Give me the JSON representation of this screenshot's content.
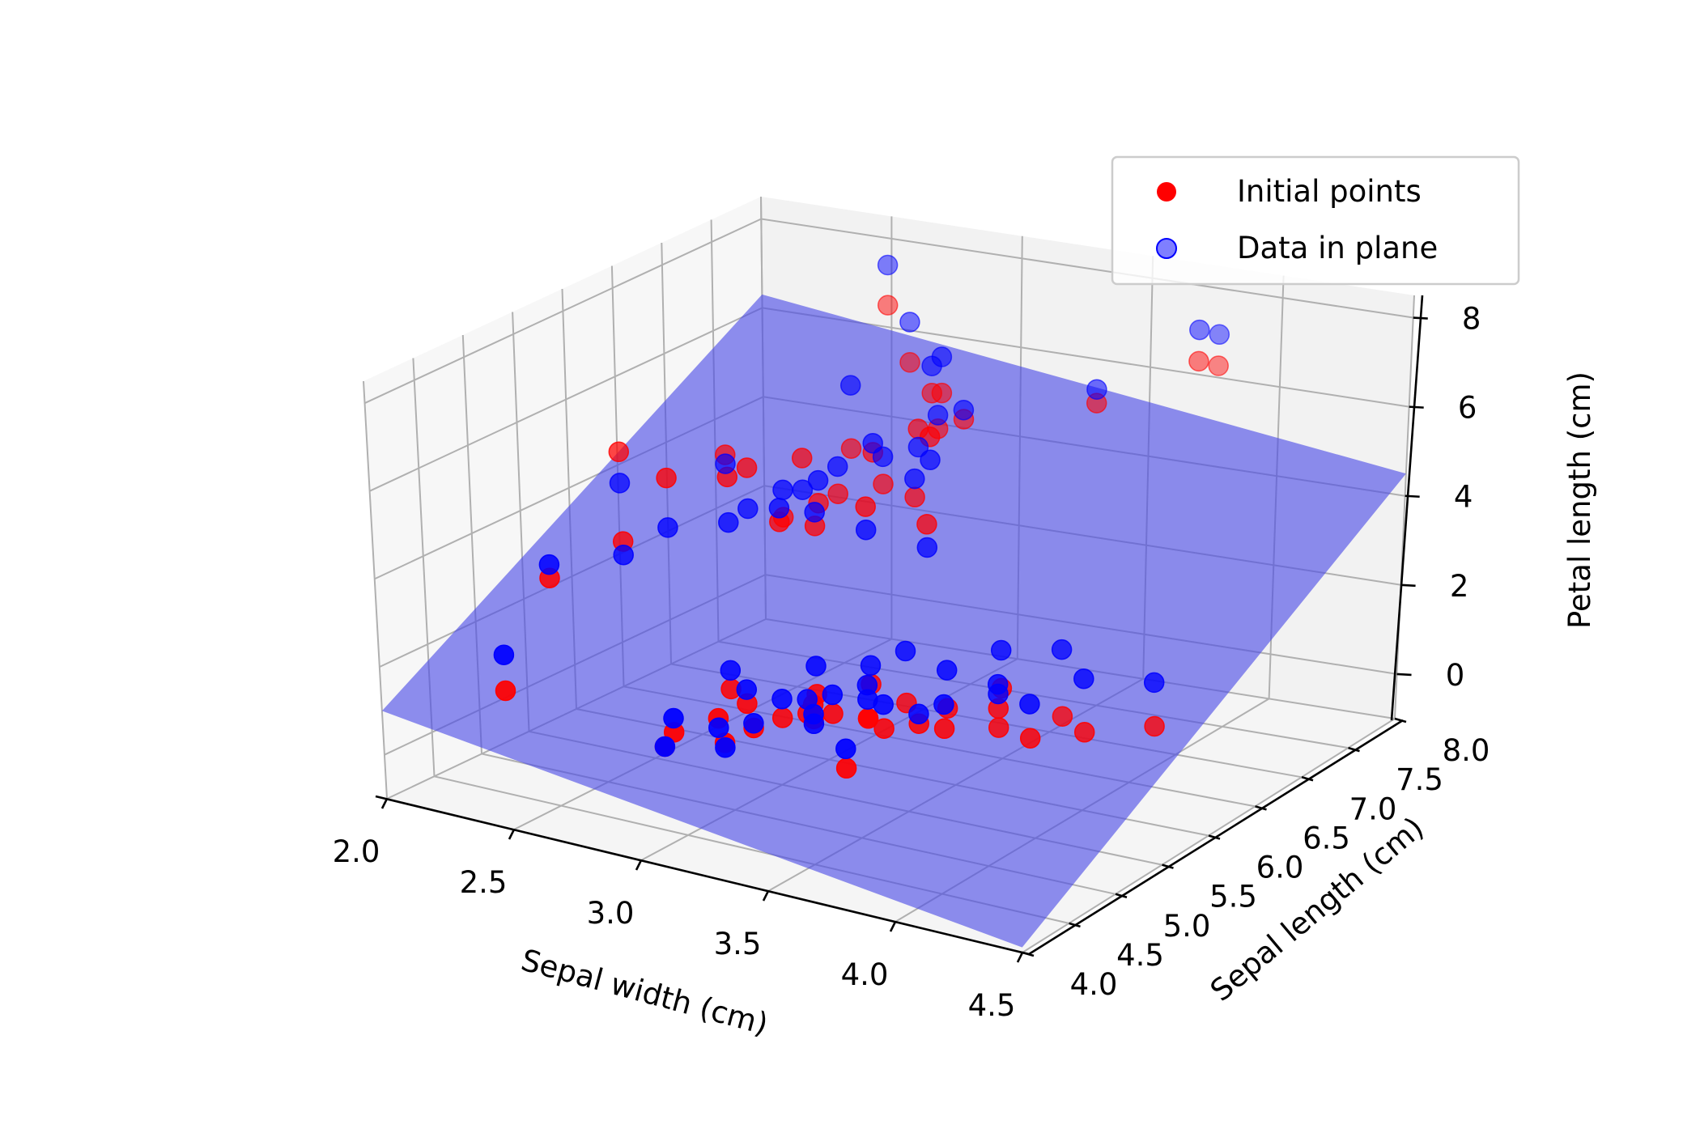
{
  "chart_data": {
    "type": "scatter",
    "projection": "3d",
    "grid": true,
    "legend_position": "top-right",
    "xlabel": "Sepal width (cm)",
    "ylabel": "Sepal length (cm)",
    "zlabel": "Petal length (cm)",
    "x_ticks": [
      "2.0",
      "2.5",
      "3.0",
      "3.5",
      "4.0",
      "4.5"
    ],
    "y_ticks": [
      "4.0",
      "4.5",
      "5.0",
      "5.5",
      "6.0",
      "6.5",
      "7.0",
      "7.5",
      "8.0"
    ],
    "z_ticks": [
      "0",
      "2",
      "4",
      "6",
      "8"
    ],
    "xlim": [
      2.0,
      4.5
    ],
    "ylim": [
      4.0,
      8.0
    ],
    "zlim": [
      -1.0,
      8.5
    ],
    "plane": {
      "color": "#4a4ae6",
      "z_center": 3.75,
      "description_points": [
        [
          2.0,
          4.0,
          1.0
        ],
        [
          4.5,
          4.0,
          -0.9
        ],
        [
          4.5,
          8.0,
          4.5
        ],
        [
          2.0,
          8.0,
          6.3
        ]
      ]
    },
    "series": [
      {
        "name": "Initial points",
        "color": "#ff0000",
        "points": [
          [
            2.3,
            5.0,
            3.3
          ],
          [
            2.9,
            5.8,
            4.3
          ],
          [
            2.7,
            6.0,
            5.1
          ],
          [
            3.0,
            6.5,
            5.2
          ],
          [
            2.8,
            6.3,
            5.1
          ],
          [
            3.2,
            6.9,
            5.7
          ],
          [
            2.5,
            5.7,
            5.0
          ],
          [
            3.0,
            7.2,
            5.8
          ],
          [
            3.1,
            6.7,
            5.6
          ],
          [
            2.9,
            6.2,
            4.3
          ],
          [
            3.0,
            5.9,
            4.2
          ],
          [
            2.8,
            6.8,
            4.8
          ],
          [
            3.3,
            6.3,
            6.0
          ],
          [
            3.0,
            7.1,
            5.9
          ],
          [
            3.6,
            7.2,
            6.1
          ],
          [
            3.8,
            7.7,
            6.7
          ],
          [
            2.6,
            7.7,
            6.9
          ],
          [
            3.8,
            7.9,
            6.4
          ],
          [
            2.8,
            7.4,
            6.1
          ],
          [
            3.1,
            6.9,
            5.4
          ],
          [
            2.2,
            6.0,
            5.0
          ],
          [
            3.2,
            6.4,
            4.5
          ],
          [
            3.4,
            6.0,
            4.5
          ],
          [
            2.7,
            5.8,
            5.1
          ],
          [
            2.4,
            5.5,
            3.7
          ],
          [
            2.5,
            6.3,
            4.9
          ],
          [
            2.9,
            6.4,
            4.3
          ],
          [
            3.0,
            6.6,
            4.4
          ],
          [
            2.8,
            6.1,
            4.0
          ],
          [
            3.2,
            5.9,
            4.8
          ],
          [
            3.4,
            5.0,
            1.5
          ],
          [
            3.0,
            4.4,
            1.3
          ],
          [
            3.5,
            5.1,
            1.4
          ],
          [
            3.1,
            4.9,
            1.5
          ],
          [
            3.7,
            5.4,
            1.5
          ],
          [
            3.4,
            4.8,
            1.6
          ],
          [
            4.0,
            5.8,
            1.2
          ],
          [
            4.4,
            5.7,
            1.5
          ],
          [
            3.9,
            5.4,
            1.3
          ],
          [
            3.5,
            5.1,
            1.4
          ],
          [
            3.8,
            5.7,
            1.7
          ],
          [
            3.8,
            5.1,
            1.5
          ],
          [
            3.4,
            5.4,
            1.7
          ],
          [
            3.7,
            5.1,
            1.5
          ],
          [
            3.6,
            4.6,
            1.0
          ],
          [
            3.3,
            5.1,
            1.7
          ],
          [
            3.4,
            4.8,
            1.9
          ],
          [
            3.0,
            5.0,
            1.6
          ],
          [
            3.2,
            4.4,
            1.3
          ],
          [
            2.3,
            4.5,
            1.3
          ],
          [
            3.2,
            5.0,
            1.2
          ],
          [
            3.5,
            5.5,
            1.3
          ],
          [
            3.1,
            4.6,
            1.5
          ],
          [
            3.6,
            5.0,
            1.4
          ],
          [
            4.1,
            5.2,
            1.5
          ],
          [
            4.2,
            5.5,
            1.4
          ],
          [
            3.0,
            4.3,
            1.1
          ],
          [
            3.9,
            5.4,
            1.7
          ],
          [
            3.3,
            5.0,
            1.4
          ],
          [
            3.2,
            4.7,
            1.3
          ]
        ]
      },
      {
        "name": "Data in plane",
        "color": "#0000ff",
        "points": [
          [
            2.3,
            5.0,
            3.6
          ],
          [
            2.9,
            5.8,
            4.6
          ],
          [
            2.7,
            6.0,
            4.2
          ],
          [
            3.0,
            6.5,
            5.4
          ],
          [
            2.8,
            6.3,
            4.4
          ],
          [
            3.2,
            6.9,
            5.9
          ],
          [
            2.5,
            5.7,
            3.9
          ],
          [
            3.0,
            7.2,
            6.6
          ],
          [
            3.1,
            6.7,
            5.2
          ],
          [
            2.9,
            6.2,
            4.8
          ],
          [
            3.0,
            5.9,
            4.5
          ],
          [
            2.8,
            6.8,
            6.2
          ],
          [
            3.3,
            6.3,
            5.5
          ],
          [
            3.0,
            7.1,
            6.5
          ],
          [
            3.6,
            7.2,
            6.4
          ],
          [
            3.8,
            7.7,
            7.4
          ],
          [
            2.6,
            7.7,
            7.8
          ],
          [
            3.8,
            7.9,
            7.1
          ],
          [
            2.8,
            7.4,
            7.0
          ],
          [
            3.1,
            6.9,
            5.7
          ],
          [
            2.2,
            6.0,
            4.3
          ],
          [
            3.2,
            6.4,
            4.9
          ],
          [
            3.4,
            6.0,
            4.0
          ],
          [
            2.7,
            5.8,
            4.1
          ],
          [
            2.4,
            5.5,
            3.4
          ],
          [
            2.5,
            6.3,
            4.7
          ],
          [
            2.9,
            6.4,
            4.9
          ],
          [
            3.0,
            6.6,
            5.0
          ],
          [
            2.8,
            6.1,
            4.6
          ],
          [
            3.2,
            5.9,
            4.3
          ],
          [
            3.4,
            5.0,
            1.9
          ],
          [
            3.0,
            4.4,
            1.6
          ],
          [
            3.5,
            5.1,
            2.1
          ],
          [
            3.1,
            4.9,
            1.8
          ],
          [
            3.7,
            5.4,
            2.3
          ],
          [
            3.4,
            4.8,
            1.7
          ],
          [
            4.0,
            5.8,
            2.6
          ],
          [
            4.4,
            5.7,
            2.4
          ],
          [
            3.9,
            5.4,
            2.2
          ],
          [
            3.5,
            5.1,
            1.8
          ],
          [
            3.8,
            5.7,
            2.5
          ],
          [
            3.8,
            5.1,
            2.0
          ],
          [
            3.4,
            5.4,
            2.1
          ],
          [
            3.7,
            5.1,
            1.7
          ],
          [
            3.6,
            4.6,
            1.4
          ],
          [
            3.3,
            5.1,
            2.3
          ],
          [
            3.4,
            4.8,
            1.5
          ],
          [
            3.0,
            5.0,
            2.0
          ],
          [
            3.2,
            4.4,
            1.2
          ],
          [
            2.3,
            4.5,
            2.1
          ],
          [
            3.2,
            5.0,
            1.6
          ],
          [
            3.5,
            5.5,
            2.4
          ],
          [
            3.1,
            4.6,
            1.3
          ],
          [
            3.6,
            5.0,
            1.9
          ],
          [
            4.1,
            5.2,
            2.2
          ],
          [
            4.2,
            5.5,
            2.5
          ],
          [
            3.0,
            4.3,
            1.1
          ],
          [
            3.9,
            5.4,
            2.0
          ],
          [
            3.3,
            5.0,
            1.7
          ],
          [
            3.2,
            4.7,
            1.4
          ]
        ]
      }
    ]
  }
}
